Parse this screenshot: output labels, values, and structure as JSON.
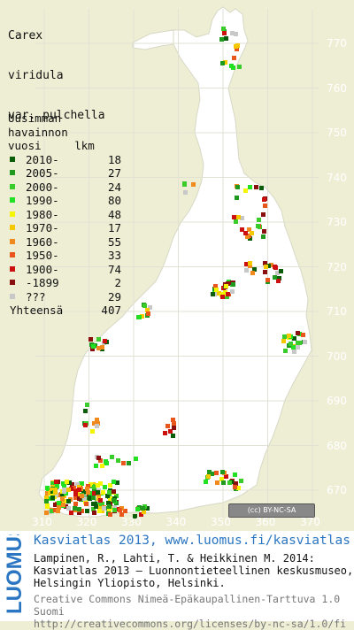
{
  "title": [
    "Carex",
    "viridula",
    "var. pulchella"
  ],
  "legend": {
    "header": [
      "Uusimman",
      "havainnon",
      "vuosi     lkm"
    ],
    "rows": [
      {
        "label": "2010-",
        "count": "18",
        "color": "#0a5e0a"
      },
      {
        "label": "2005-",
        "count": "27",
        "color": "#1f9a1f"
      },
      {
        "label": "2000-",
        "count": "24",
        "color": "#3acc2a"
      },
      {
        "label": "1990-",
        "count": "80",
        "color": "#22e022"
      },
      {
        "label": "1980-",
        "count": "48",
        "color": "#f5f500"
      },
      {
        "label": "1970-",
        "count": "17",
        "color": "#f5c800"
      },
      {
        "label": "1960-",
        "count": "55",
        "color": "#f08a1c"
      },
      {
        "label": "1950-",
        "count": "33",
        "color": "#e8561c"
      },
      {
        "label": "1900-",
        "count": "74",
        "color": "#cc1010"
      },
      {
        "label": "-1899",
        "count": "2",
        "color": "#8a1010"
      },
      {
        "label": "???",
        "count": "29",
        "color": "#c8c8c8"
      }
    ],
    "total_label": "Yhteensä",
    "total_count": "407"
  },
  "axes": {
    "northing": [
      "770",
      "760",
      "750",
      "740",
      "730",
      "720",
      "710",
      "700",
      "690",
      "680",
      "670"
    ],
    "easting": [
      "310",
      "320",
      "330",
      "340",
      "350",
      "360",
      "370"
    ]
  },
  "cc_badge": "(cc) BY-NC-SA",
  "footer": {
    "logo": "LUOMUS",
    "headline": "Kasviatlas 2013, www.luomus.fi/kasviatlas",
    "citation": [
      "Lampinen, R., Lahti, T. & Heikkinen M. 2014:",
      "Kasviatlas 2013 – Luonnontieteellinen keskusmuseo,",
      "Helsingin Yliopisto, Helsinki."
    ],
    "license": [
      "Creative Commons Nimeä-Epäkaupallinen-Tarttuva 1.0 Suomi",
      "http://creativecommons.org/licenses/by-nc-sa/1.0/fi"
    ]
  }
}
